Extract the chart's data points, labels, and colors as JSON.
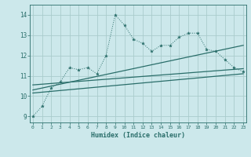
{
  "title": "",
  "xlabel": "Humidex (Indice chaleur)",
  "ylabel": "",
  "background_color": "#cce8eb",
  "grid_color": "#aacccc",
  "line_color": "#2a6e6a",
  "x_ticks": [
    0,
    1,
    2,
    3,
    4,
    5,
    6,
    7,
    8,
    9,
    10,
    11,
    12,
    13,
    14,
    15,
    16,
    17,
    18,
    19,
    20,
    21,
    22,
    23
  ],
  "y_ticks": [
    9,
    10,
    11,
    12,
    13,
    14
  ],
  "xlim": [
    -0.3,
    23.3
  ],
  "ylim": [
    8.7,
    14.5
  ],
  "series1_x": [
    0,
    1,
    2,
    3,
    4,
    5,
    6,
    7,
    8,
    9,
    10,
    11,
    12,
    13,
    14,
    15,
    16,
    17,
    18,
    19,
    20,
    21,
    22,
    23
  ],
  "series1_y": [
    9.0,
    9.5,
    10.4,
    10.7,
    11.4,
    11.3,
    11.4,
    11.1,
    12.0,
    14.0,
    13.5,
    12.8,
    12.6,
    12.2,
    12.5,
    12.5,
    12.9,
    13.1,
    13.1,
    12.3,
    12.2,
    11.8,
    11.4,
    11.2
  ],
  "line1_x": [
    0,
    23
  ],
  "line1_y": [
    10.55,
    11.35
  ],
  "line2_x": [
    0,
    23
  ],
  "line2_y": [
    10.3,
    12.5
  ],
  "line3_x": [
    0,
    23
  ],
  "line3_y": [
    10.15,
    11.1
  ]
}
